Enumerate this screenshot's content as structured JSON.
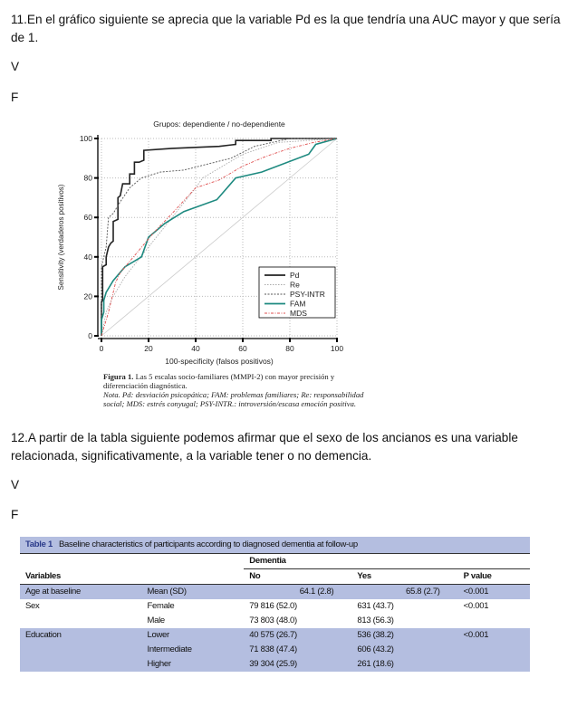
{
  "q11": {
    "text": "11.En el gráfico siguiente se aprecia que la variable Pd es la que tendría una AUC mayor y que sería de 1.",
    "v": "V",
    "f": "F"
  },
  "chart_data": {
    "type": "line",
    "title": "Grupos: dependiente / no-dependiente",
    "xlabel": "100-specificity (falsos positivos)",
    "ylabel": "Sensitivity (verdaderos positivos)",
    "xlim": [
      0,
      100
    ],
    "ylim": [
      0,
      100
    ],
    "xticks": [
      "0",
      "20",
      "40",
      "60",
      "80",
      "100"
    ],
    "yticks": [
      "0",
      "20",
      "40",
      "60",
      "80",
      "100"
    ],
    "grid": true,
    "legend": "bottom-right",
    "series": [
      {
        "name": "Pd",
        "color": "#222222",
        "style": "solid",
        "x": [
          0,
          0,
          0.5,
          0.5,
          2,
          2,
          3,
          4,
          5,
          5,
          7,
          7,
          8,
          9,
          12,
          12,
          14,
          14,
          16,
          18,
          18,
          30,
          50,
          57,
          57,
          72,
          72,
          100
        ],
        "y": [
          0,
          17,
          18,
          35,
          36,
          40,
          45,
          47,
          48,
          58,
          59,
          70,
          71,
          77,
          77,
          82,
          82,
          88,
          88,
          89,
          94,
          95,
          96,
          97,
          99,
          99,
          100,
          100
        ]
      },
      {
        "name": "Re",
        "color": "#aaaaaa",
        "style": "dotted",
        "x": [
          0,
          2,
          5,
          10,
          20,
          30,
          40,
          43,
          60,
          75,
          100
        ],
        "y": [
          0,
          12,
          20,
          30,
          45,
          60,
          75,
          80,
          92,
          98,
          100
        ]
      },
      {
        "name": "PSY-INTR",
        "color": "#555555",
        "style": "dashed",
        "x": [
          0,
          0,
          2,
          3,
          5,
          8,
          12,
          17,
          25,
          35,
          45,
          55,
          65,
          80,
          100
        ],
        "y": [
          0,
          35,
          45,
          60,
          62,
          68,
          75,
          80,
          83,
          84,
          87,
          90,
          96,
          100,
          100
        ]
      },
      {
        "name": "FAM",
        "color": "#1e8a80",
        "style": "solid",
        "x": [
          0,
          0,
          1,
          1,
          2,
          5,
          10,
          17,
          20,
          27,
          35,
          49,
          57,
          68,
          88,
          91,
          100
        ],
        "y": [
          0,
          8,
          12,
          18,
          22,
          28,
          35,
          40,
          50,
          57,
          63,
          69,
          80,
          83,
          92,
          97,
          100
        ]
      },
      {
        "name": "MDS",
        "color": "#e05050",
        "style": "dashdot",
        "x": [
          0,
          3,
          6,
          8,
          15,
          22,
          30,
          40,
          50,
          60,
          70,
          80,
          90,
          100
        ],
        "y": [
          0,
          12,
          27,
          32,
          42,
          52,
          62,
          75,
          79,
          86,
          91,
          95,
          98,
          100
        ]
      }
    ]
  },
  "caption": {
    "label": "Figura 1.",
    "text": " Las 5 escalas socio-familiares (MMPI-2) con mayor precisión y diferenciación diagnóstica.",
    "nota": "Nota. Pd: desviación psicopática; FAM: problemas familiares; Re: responsabilidad social; MDS: estrés conyugal; PSY-INTR.: introversión/escasa emoción positiva."
  },
  "q12": {
    "text": "12.A partir de la tabla siguiente podemos afirmar que el sexo de los ancianos es una variable relacionada, significativamente, a la variable tener o no demencia.",
    "v": "V",
    "f": "F"
  },
  "table": {
    "label": "Table 1",
    "title": "Baseline characteristics of participants according to diagnosed dementia at follow-up",
    "group": "Dementia",
    "headers": [
      "Variables",
      "",
      "No",
      "Yes",
      "P value"
    ],
    "rows": [
      [
        "Age at baseline",
        "Mean (SD)",
        "64.1 (2.8)",
        "65.8 (2.7)",
        "<0.001"
      ],
      [
        "Sex",
        "Female",
        "79 816 (52.0)",
        "631 (43.7)",
        "<0.001"
      ],
      [
        "",
        "Male",
        "73 803 (48.0)",
        "813 (56.3)",
        ""
      ],
      [
        "Education",
        "Lower",
        "40 575 (26.7)",
        "536 (38.2)",
        "<0.001"
      ],
      [
        "",
        "Intermediate",
        "71 838 (47.4)",
        "606 (43.2)",
        ""
      ],
      [
        "",
        "Higher",
        "39 304 (25.9)",
        "261 (18.6)",
        ""
      ]
    ]
  }
}
